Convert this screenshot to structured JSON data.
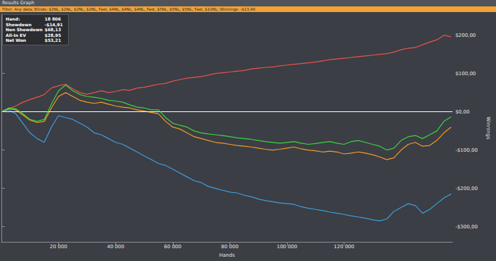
{
  "window_title": "Results Graph",
  "filter": "Filter: Any data; Blinds: $2NL, $2NL, $2NL, $2NL, Fast, $4NL, $4NL, $4NL, Fast, $5NL, $5NL, $5NL, Fast, $10NL; Winnings: -$13,48",
  "info_box": {
    "hand_label": "Hand:",
    "hand": "18 806",
    "values": [
      "-$14,91",
      "$68,13",
      "$28,95",
      "$53,21"
    ]
  },
  "chart_data": {
    "type": "line",
    "x_label": "Hands",
    "y_label": "Winnings",
    "grid": false,
    "x": [
      0,
      2500,
      5000,
      7500,
      10000,
      12500,
      15000,
      17500,
      20000,
      22500,
      25000,
      27500,
      30000,
      32500,
      35000,
      37500,
      40000,
      42500,
      45000,
      47500,
      50000,
      52500,
      55000,
      57500,
      60000,
      62500,
      65000,
      67500,
      70000,
      72500,
      75000,
      77500,
      80000,
      82500,
      85000,
      87500,
      90000,
      92500,
      95000,
      97500,
      100000,
      102500,
      105000,
      107500,
      110000,
      112500,
      115000,
      117500,
      120000,
      122500,
      125000,
      127500,
      130000,
      132500,
      135000,
      137500,
      140000,
      142500,
      145000,
      147500,
      150000,
      152500,
      155000,
      157500
    ],
    "series": [
      {
        "name": "Showdown",
        "color": "#3e9de0",
        "values": [
          0,
          5,
          -5,
          -30,
          -55,
          -70,
          -80,
          -40,
          -10,
          -15,
          -20,
          -30,
          -40,
          -55,
          -60,
          -70,
          -80,
          -85,
          -95,
          -105,
          -115,
          -125,
          -135,
          -140,
          -150,
          -160,
          -170,
          -180,
          -185,
          -195,
          -200,
          -205,
          -210,
          -212,
          -218,
          -222,
          -228,
          -232,
          -235,
          -238,
          -240,
          -242,
          -248,
          -252,
          -255,
          -258,
          -262,
          -265,
          -268,
          -272,
          -275,
          -278,
          -282,
          -285,
          -280,
          -260,
          -250,
          -240,
          -245,
          -265,
          -255,
          -240,
          -225,
          -215
        ]
      },
      {
        "name": "Non Showdown",
        "color": "#e8524f",
        "values": [
          0,
          8,
          15,
          25,
          32,
          38,
          45,
          62,
          68,
          72,
          60,
          50,
          46,
          50,
          55,
          50,
          53,
          58,
          56,
          62,
          64,
          68,
          72,
          74,
          80,
          84,
          88,
          90,
          92,
          96,
          100,
          102,
          104,
          106,
          108,
          112,
          114,
          116,
          117,
          120,
          122,
          124,
          126,
          128,
          130,
          133,
          136,
          138,
          140,
          142,
          144,
          146,
          148,
          150,
          152,
          156,
          162,
          166,
          168,
          175,
          182,
          188,
          200,
          196
        ]
      },
      {
        "name": "All-In EV",
        "color": "#f59a23",
        "values": [
          0,
          8,
          5,
          -8,
          -22,
          -28,
          -25,
          10,
          40,
          50,
          40,
          30,
          25,
          22,
          25,
          20,
          15,
          12,
          10,
          5,
          2,
          -2,
          -5,
          -25,
          -40,
          -45,
          -55,
          -65,
          -70,
          -75,
          -80,
          -82,
          -85,
          -88,
          -90,
          -92,
          -95,
          -98,
          -100,
          -98,
          -95,
          -92,
          -97,
          -100,
          -102,
          -105,
          -103,
          -105,
          -110,
          -108,
          -105,
          -108,
          -112,
          -118,
          -125,
          -120,
          -100,
          -85,
          -80,
          -90,
          -88,
          -75,
          -55,
          -40
        ]
      },
      {
        "name": "Net Won",
        "color": "#3fd13f",
        "values": [
          0,
          10,
          8,
          -5,
          -20,
          -25,
          -20,
          20,
          55,
          70,
          55,
          45,
          40,
          38,
          35,
          30,
          28,
          25,
          18,
          12,
          10,
          5,
          5,
          -15,
          -30,
          -35,
          -40,
          -50,
          -55,
          -58,
          -60,
          -62,
          -65,
          -68,
          -70,
          -72,
          -75,
          -78,
          -80,
          -82,
          -80,
          -78,
          -82,
          -85,
          -83,
          -80,
          -78,
          -82,
          -85,
          -78,
          -75,
          -80,
          -85,
          -90,
          -100,
          -95,
          -75,
          -65,
          -62,
          -70,
          -60,
          -50,
          -25,
          -13
        ]
      }
    ],
    "xlim": [
      0,
      158000
    ],
    "xticks": [
      {
        "value": 20000,
        "label": "20 000"
      },
      {
        "value": 40000,
        "label": "40 000"
      },
      {
        "value": 60000,
        "label": "60 000"
      },
      {
        "value": 80000,
        "label": "80 000"
      },
      {
        "value": 100000,
        "label": "100 000"
      },
      {
        "value": 120000,
        "label": "120 000"
      }
    ],
    "ylim": [
      -340,
      255
    ],
    "yticks": [
      {
        "value": -300,
        "label": "-$300,00"
      },
      {
        "value": -200,
        "label": "-$200,00"
      },
      {
        "value": -100,
        "label": "-$100,00"
      },
      {
        "value": 0,
        "label": "$0,00"
      },
      {
        "value": 100,
        "label": "$100,00"
      },
      {
        "value": 200,
        "label": "$200,00"
      }
    ]
  }
}
